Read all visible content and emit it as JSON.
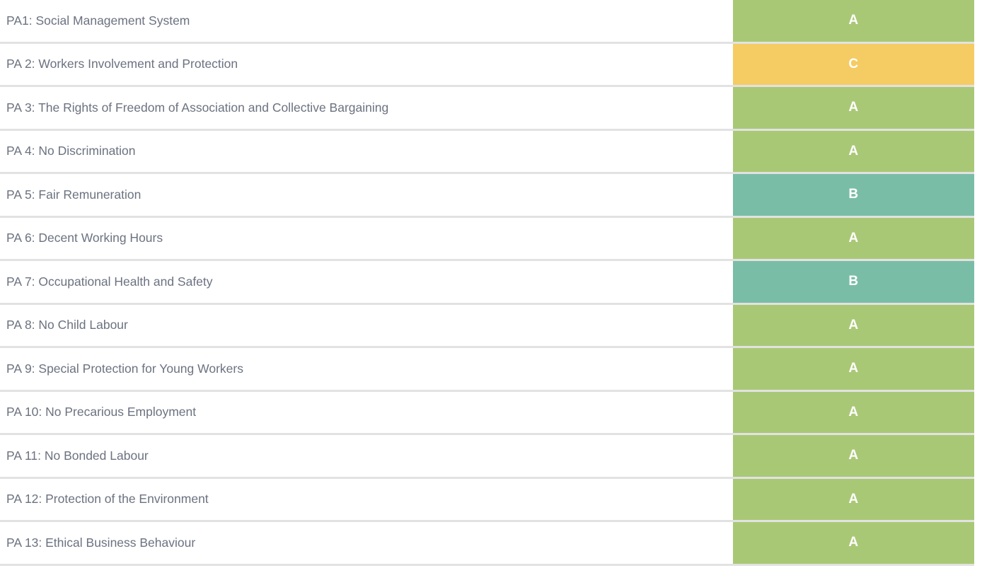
{
  "table": {
    "name": "performance-area-ratings",
    "rows": [
      {
        "label": "PA1: Social Management System",
        "rating": "A"
      },
      {
        "label": "PA 2: Workers Involvement and Protection",
        "rating": "C"
      },
      {
        "label": "PA 3: The Rights of Freedom of Association and Collective Bargaining",
        "rating": "A"
      },
      {
        "label": "PA 4: No Discrimination",
        "rating": "A"
      },
      {
        "label": "PA 5: Fair Remuneration",
        "rating": "B"
      },
      {
        "label": "PA 6: Decent Working Hours",
        "rating": "A"
      },
      {
        "label": "PA 7: Occupational Health and Safety",
        "rating": "B"
      },
      {
        "label": "PA 8: No Child Labour",
        "rating": "A"
      },
      {
        "label": "PA 9: Special Protection for Young Workers",
        "rating": "A"
      },
      {
        "label": "PA 10: No Precarious Employment",
        "rating": "A"
      },
      {
        "label": "PA 11: No Bonded Labour",
        "rating": "A"
      },
      {
        "label": "PA 12: Protection of the Environment",
        "rating": "A"
      },
      {
        "label": "PA 13: Ethical Business Behaviour",
        "rating": "A"
      }
    ],
    "rating_colors": {
      "A": "#a9c876",
      "B": "#7abda7",
      "C": "#f5cb63"
    },
    "divider_color": "#e2e2e2",
    "label_text_color": "#6b7280",
    "rating_text_color": "#ffffff"
  }
}
